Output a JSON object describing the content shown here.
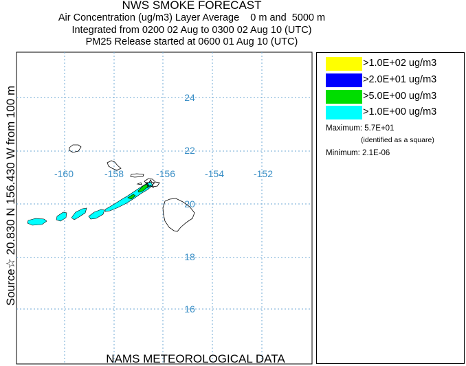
{
  "header": {
    "title": "NWS SMOKE FORECAST",
    "line1": "Air Concentration (ug/m3) Layer Average    0 m and  5000 m",
    "line2": "Integrated from 0200 02 Aug to 0300 02 Aug 10 (UTC)",
    "line3": "PM25 Release started at 0600 01 Aug 10 (UTC)"
  },
  "side_label": "Source☆ 20.830  N 156.430  W     from  100 m",
  "footer": "NAMS METEOROLOGICAL DATA",
  "map": {
    "lon_labels": [
      "-160",
      "-158",
      "-156",
      "-154",
      "-152"
    ],
    "lat_labels": [
      "24",
      "22",
      "20",
      "18",
      "16"
    ],
    "grid_color": "#6fa8d6",
    "label_color": "#3a8fc6",
    "source_marker": "star-icon"
  },
  "legend": {
    "items": [
      {
        "label": ">1.0E+02 ug/m3",
        "color": "#ffff00"
      },
      {
        "label": ">2.0E+01 ug/m3",
        "color": "#0000ff"
      },
      {
        "label": ">5.0E+00 ug/m3",
        "color": "#00dd00"
      },
      {
        "label": ">1.0E+00 ug/m3",
        "color": "#00ffff"
      }
    ],
    "maximum_label": "Maximum:",
    "maximum_value": "5.7E+01",
    "maximum_note": "(identified as a square)",
    "minimum_label": "Minimum:",
    "minimum_value": "2.1E-06"
  }
}
